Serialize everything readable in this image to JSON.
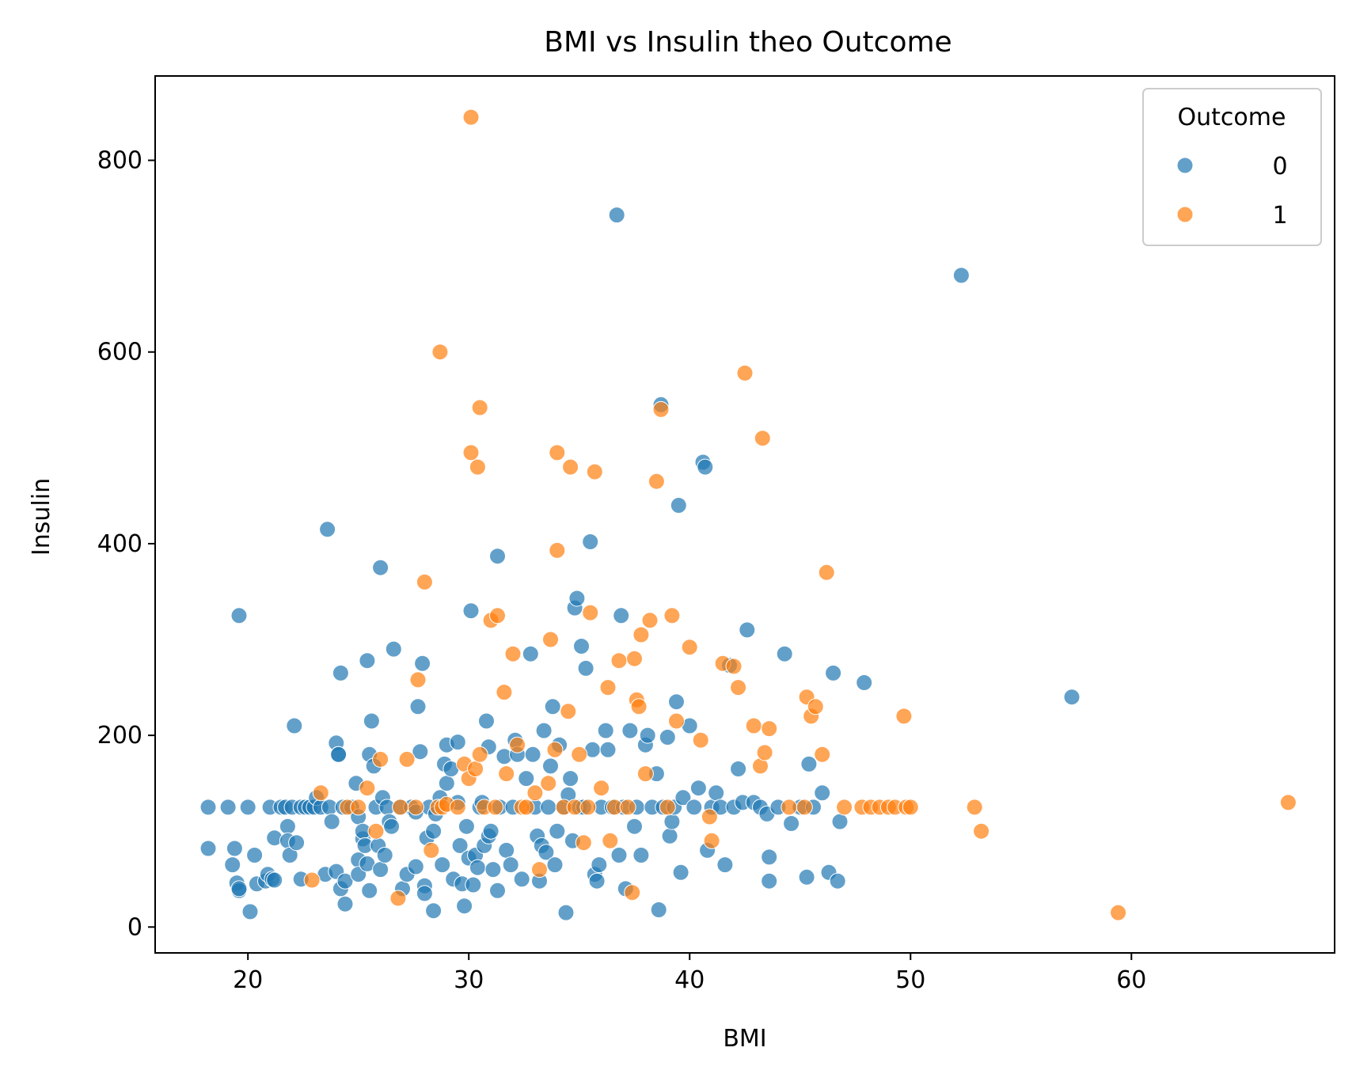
{
  "chart_data": {
    "type": "scatter",
    "title": "BMI vs Insulin theo Outcome",
    "xlabel": "BMI",
    "ylabel": "Insulin",
    "xlim": [
      15.8,
      69.2
    ],
    "ylim": [
      -27,
      888
    ],
    "xticks": [
      20,
      30,
      40,
      50,
      60
    ],
    "yticks": [
      0,
      200,
      400,
      600,
      800
    ],
    "grid": false,
    "legend": {
      "title": "Outcome",
      "position": "top-right"
    },
    "series": [
      {
        "name": "0",
        "color": "#1f77b4",
        "points": [
          [
            18.2,
            125
          ],
          [
            18.2,
            82
          ],
          [
            19.1,
            125
          ],
          [
            19.3,
            65
          ],
          [
            19.4,
            82
          ],
          [
            19.5,
            46
          ],
          [
            19.6,
            38
          ],
          [
            19.6,
            40
          ],
          [
            19.6,
            325
          ],
          [
            20.0,
            125
          ],
          [
            20.1,
            16
          ],
          [
            20.3,
            75
          ],
          [
            20.4,
            45
          ],
          [
            20.8,
            48
          ],
          [
            20.9,
            55
          ],
          [
            21.0,
            125
          ],
          [
            21.1,
            50
          ],
          [
            21.2,
            49
          ],
          [
            21.2,
            93
          ],
          [
            21.5,
            125
          ],
          [
            21.7,
            125
          ],
          [
            21.8,
            105
          ],
          [
            21.8,
            90
          ],
          [
            21.9,
            75
          ],
          [
            22.0,
            125
          ],
          [
            22.1,
            210
          ],
          [
            22.2,
            88
          ],
          [
            22.4,
            125
          ],
          [
            22.4,
            50
          ],
          [
            22.6,
            125
          ],
          [
            22.8,
            125
          ],
          [
            23.0,
            125
          ],
          [
            23.1,
            135
          ],
          [
            23.3,
            125
          ],
          [
            23.5,
            55
          ],
          [
            23.6,
            415
          ],
          [
            23.7,
            125
          ],
          [
            23.8,
            110
          ],
          [
            24.0,
            192
          ],
          [
            24.0,
            58
          ],
          [
            24.1,
            180
          ],
          [
            24.1,
            180
          ],
          [
            24.2,
            265
          ],
          [
            24.2,
            40
          ],
          [
            24.3,
            125
          ],
          [
            24.4,
            48
          ],
          [
            24.4,
            24
          ],
          [
            24.7,
            125
          ],
          [
            24.9,
            150
          ],
          [
            25.0,
            115
          ],
          [
            25.0,
            70
          ],
          [
            25.0,
            55
          ],
          [
            25.2,
            92
          ],
          [
            25.2,
            100
          ],
          [
            25.3,
            85
          ],
          [
            25.4,
            66
          ],
          [
            25.4,
            278
          ],
          [
            25.5,
            38
          ],
          [
            25.5,
            180
          ],
          [
            25.6,
            215
          ],
          [
            25.7,
            168
          ],
          [
            25.8,
            125
          ],
          [
            25.9,
            85
          ],
          [
            26.0,
            375
          ],
          [
            26.0,
            60
          ],
          [
            26.1,
            135
          ],
          [
            26.2,
            75
          ],
          [
            26.3,
            125
          ],
          [
            26.4,
            110
          ],
          [
            26.5,
            105
          ],
          [
            26.6,
            290
          ],
          [
            26.9,
            125
          ],
          [
            27.0,
            40
          ],
          [
            27.2,
            55
          ],
          [
            27.4,
            125
          ],
          [
            27.6,
            120
          ],
          [
            27.6,
            63
          ],
          [
            27.7,
            230
          ],
          [
            27.8,
            183
          ],
          [
            27.9,
            275
          ],
          [
            28.0,
            43
          ],
          [
            28.0,
            35
          ],
          [
            28.1,
            93
          ],
          [
            28.2,
            125
          ],
          [
            28.4,
            17
          ],
          [
            28.4,
            100
          ],
          [
            28.5,
            118
          ],
          [
            28.7,
            135
          ],
          [
            28.8,
            65
          ],
          [
            28.9,
            170
          ],
          [
            29.0,
            190
          ],
          [
            29.0,
            150
          ],
          [
            29.2,
            165
          ],
          [
            29.3,
            50
          ],
          [
            29.5,
            193
          ],
          [
            29.5,
            130
          ],
          [
            29.6,
            85
          ],
          [
            29.7,
            45
          ],
          [
            29.8,
            22
          ],
          [
            29.9,
            105
          ],
          [
            30.0,
            72
          ],
          [
            30.1,
            330
          ],
          [
            30.2,
            44
          ],
          [
            30.3,
            75
          ],
          [
            30.4,
            62
          ],
          [
            30.5,
            125
          ],
          [
            30.6,
            130
          ],
          [
            30.7,
            85
          ],
          [
            30.8,
            215
          ],
          [
            30.9,
            188
          ],
          [
            30.9,
            95
          ],
          [
            31.0,
            100
          ],
          [
            31.1,
            60
          ],
          [
            31.3,
            387
          ],
          [
            31.3,
            38
          ],
          [
            31.4,
            125
          ],
          [
            31.6,
            178
          ],
          [
            31.7,
            80
          ],
          [
            31.9,
            65
          ],
          [
            32.0,
            125
          ],
          [
            32.1,
            195
          ],
          [
            32.2,
            180
          ],
          [
            32.4,
            50
          ],
          [
            32.6,
            155
          ],
          [
            32.8,
            285
          ],
          [
            32.9,
            180
          ],
          [
            33.0,
            125
          ],
          [
            33.1,
            95
          ],
          [
            33.2,
            48
          ],
          [
            33.3,
            85
          ],
          [
            33.4,
            205
          ],
          [
            33.5,
            78
          ],
          [
            33.6,
            125
          ],
          [
            33.7,
            168
          ],
          [
            33.8,
            230
          ],
          [
            33.9,
            65
          ],
          [
            34.0,
            100
          ],
          [
            34.1,
            190
          ],
          [
            34.3,
            125
          ],
          [
            34.4,
            15
          ],
          [
            34.5,
            138
          ],
          [
            34.6,
            155
          ],
          [
            34.7,
            90
          ],
          [
            34.8,
            333
          ],
          [
            34.9,
            343
          ],
          [
            35.0,
            125
          ],
          [
            35.1,
            293
          ],
          [
            35.2,
            125
          ],
          [
            35.3,
            270
          ],
          [
            35.5,
            402
          ],
          [
            35.6,
            185
          ],
          [
            35.7,
            55
          ],
          [
            35.8,
            48
          ],
          [
            35.9,
            65
          ],
          [
            36.0,
            125
          ],
          [
            36.2,
            205
          ],
          [
            36.3,
            185
          ],
          [
            36.5,
            125
          ],
          [
            36.7,
            743
          ],
          [
            36.8,
            75
          ],
          [
            36.9,
            325
          ],
          [
            37.0,
            125
          ],
          [
            37.1,
            40
          ],
          [
            37.3,
            205
          ],
          [
            37.5,
            105
          ],
          [
            37.6,
            125
          ],
          [
            37.8,
            75
          ],
          [
            38.0,
            190
          ],
          [
            38.1,
            200
          ],
          [
            38.3,
            125
          ],
          [
            38.5,
            160
          ],
          [
            38.6,
            18
          ],
          [
            38.7,
            545
          ],
          [
            38.8,
            125
          ],
          [
            39.0,
            198
          ],
          [
            39.1,
            95
          ],
          [
            39.2,
            110
          ],
          [
            39.3,
            125
          ],
          [
            39.4,
            235
          ],
          [
            39.5,
            440
          ],
          [
            39.6,
            57
          ],
          [
            39.7,
            135
          ],
          [
            40.0,
            210
          ],
          [
            40.2,
            125
          ],
          [
            40.4,
            145
          ],
          [
            40.6,
            485
          ],
          [
            40.7,
            480
          ],
          [
            40.8,
            80
          ],
          [
            41.0,
            125
          ],
          [
            41.2,
            140
          ],
          [
            41.4,
            125
          ],
          [
            41.6,
            65
          ],
          [
            41.8,
            273
          ],
          [
            42.0,
            125
          ],
          [
            42.2,
            165
          ],
          [
            42.4,
            130
          ],
          [
            42.6,
            310
          ],
          [
            42.9,
            130
          ],
          [
            43.2,
            125
          ],
          [
            43.5,
            118
          ],
          [
            43.6,
            73
          ],
          [
            43.6,
            48
          ],
          [
            44.0,
            125
          ],
          [
            44.3,
            285
          ],
          [
            44.6,
            108
          ],
          [
            45.0,
            125
          ],
          [
            45.3,
            52
          ],
          [
            45.4,
            170
          ],
          [
            45.6,
            125
          ],
          [
            46.0,
            140
          ],
          [
            46.3,
            57
          ],
          [
            46.5,
            265
          ],
          [
            46.7,
            48
          ],
          [
            46.8,
            110
          ],
          [
            47.9,
            255
          ],
          [
            52.3,
            680
          ],
          [
            57.3,
            240
          ]
        ]
      },
      {
        "name": "1",
        "color": "#ff7f0e",
        "points": [
          [
            22.9,
            49
          ],
          [
            23.3,
            140
          ],
          [
            24.5,
            125
          ],
          [
            25.0,
            125
          ],
          [
            25.4,
            145
          ],
          [
            25.8,
            100
          ],
          [
            26.0,
            175
          ],
          [
            26.8,
            30
          ],
          [
            26.9,
            125
          ],
          [
            27.2,
            175
          ],
          [
            27.6,
            125
          ],
          [
            27.7,
            258
          ],
          [
            28.0,
            360
          ],
          [
            28.3,
            80
          ],
          [
            28.6,
            125
          ],
          [
            28.7,
            600
          ],
          [
            28.8,
            125
          ],
          [
            29.0,
            128
          ],
          [
            29.5,
            125
          ],
          [
            29.8,
            170
          ],
          [
            30.0,
            155
          ],
          [
            30.1,
            495
          ],
          [
            30.1,
            845
          ],
          [
            30.3,
            165
          ],
          [
            30.4,
            480
          ],
          [
            30.5,
            180
          ],
          [
            30.5,
            542
          ],
          [
            30.7,
            125
          ],
          [
            31.0,
            320
          ],
          [
            31.2,
            125
          ],
          [
            31.3,
            325
          ],
          [
            31.6,
            245
          ],
          [
            31.7,
            160
          ],
          [
            32.0,
            285
          ],
          [
            32.2,
            190
          ],
          [
            32.4,
            125
          ],
          [
            32.6,
            125
          ],
          [
            33.0,
            140
          ],
          [
            33.2,
            60
          ],
          [
            33.6,
            150
          ],
          [
            33.7,
            300
          ],
          [
            33.9,
            185
          ],
          [
            34.0,
            393
          ],
          [
            34.0,
            495
          ],
          [
            34.3,
            125
          ],
          [
            34.5,
            225
          ],
          [
            34.6,
            480
          ],
          [
            34.8,
            125
          ],
          [
            35.0,
            180
          ],
          [
            35.2,
            88
          ],
          [
            35.4,
            125
          ],
          [
            35.5,
            328
          ],
          [
            35.7,
            475
          ],
          [
            36.0,
            145
          ],
          [
            36.3,
            250
          ],
          [
            36.4,
            90
          ],
          [
            36.6,
            125
          ],
          [
            36.8,
            278
          ],
          [
            37.2,
            125
          ],
          [
            37.4,
            36
          ],
          [
            37.5,
            280
          ],
          [
            37.6,
            237
          ],
          [
            37.7,
            230
          ],
          [
            37.8,
            305
          ],
          [
            38.0,
            160
          ],
          [
            38.2,
            320
          ],
          [
            38.5,
            465
          ],
          [
            38.7,
            540
          ],
          [
            39.0,
            125
          ],
          [
            39.2,
            325
          ],
          [
            39.4,
            215
          ],
          [
            40.0,
            292
          ],
          [
            40.5,
            195
          ],
          [
            40.9,
            115
          ],
          [
            41.0,
            90
          ],
          [
            41.5,
            275
          ],
          [
            42.0,
            272
          ],
          [
            42.2,
            250
          ],
          [
            42.5,
            578
          ],
          [
            42.9,
            210
          ],
          [
            43.2,
            168
          ],
          [
            43.3,
            510
          ],
          [
            43.4,
            182
          ],
          [
            43.6,
            207
          ],
          [
            44.5,
            125
          ],
          [
            45.2,
            125
          ],
          [
            45.3,
            240
          ],
          [
            45.5,
            220
          ],
          [
            45.7,
            230
          ],
          [
            46.0,
            180
          ],
          [
            46.2,
            370
          ],
          [
            47.0,
            125
          ],
          [
            47.8,
            125
          ],
          [
            48.2,
            125
          ],
          [
            48.6,
            125
          ],
          [
            49.0,
            125
          ],
          [
            49.3,
            125
          ],
          [
            49.7,
            220
          ],
          [
            49.8,
            125
          ],
          [
            50.0,
            125
          ],
          [
            52.9,
            125
          ],
          [
            53.2,
            100
          ],
          [
            59.4,
            15
          ],
          [
            67.1,
            130
          ]
        ]
      }
    ]
  }
}
